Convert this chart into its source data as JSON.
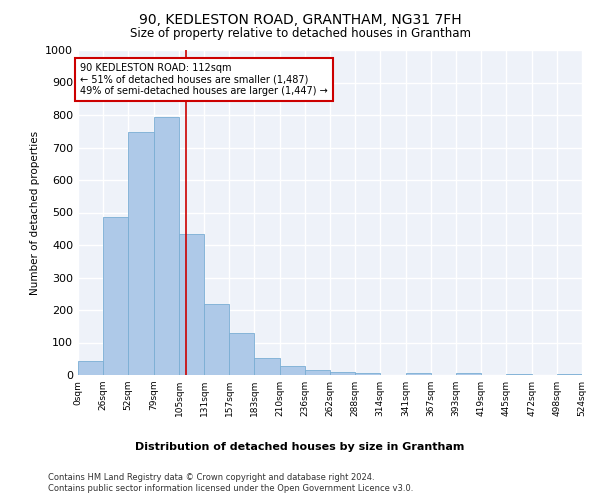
{
  "title": "90, KEDLESTON ROAD, GRANTHAM, NG31 7FH",
  "subtitle": "Size of property relative to detached houses in Grantham",
  "xlabel": "Distribution of detached houses by size in Grantham",
  "ylabel": "Number of detached properties",
  "bar_color": "#aec9e8",
  "bar_edge_color": "#7aaed4",
  "background_color": "#eef2f9",
  "grid_color": "#ffffff",
  "vline_x": 112,
  "vline_color": "#cc0000",
  "annotation_text": "90 KEDLESTON ROAD: 112sqm\n← 51% of detached houses are smaller (1,487)\n49% of semi-detached houses are larger (1,447) →",
  "annotation_box_color": "#ffffff",
  "annotation_box_edge_color": "#cc0000",
  "bin_edges": [
    0,
    26,
    52,
    79,
    105,
    131,
    157,
    183,
    210,
    236,
    262,
    288,
    314,
    341,
    367,
    393,
    419,
    445,
    472,
    498,
    524
  ],
  "bar_heights": [
    42,
    487,
    748,
    793,
    435,
    220,
    128,
    52,
    27,
    14,
    9,
    5,
    0,
    6,
    0,
    5,
    0,
    4,
    0,
    2
  ],
  "ylim": [
    0,
    1000
  ],
  "yticks": [
    0,
    100,
    200,
    300,
    400,
    500,
    600,
    700,
    800,
    900,
    1000
  ],
  "footer_line1": "Contains HM Land Registry data © Crown copyright and database right 2024.",
  "footer_line2": "Contains public sector information licensed under the Open Government Licence v3.0."
}
